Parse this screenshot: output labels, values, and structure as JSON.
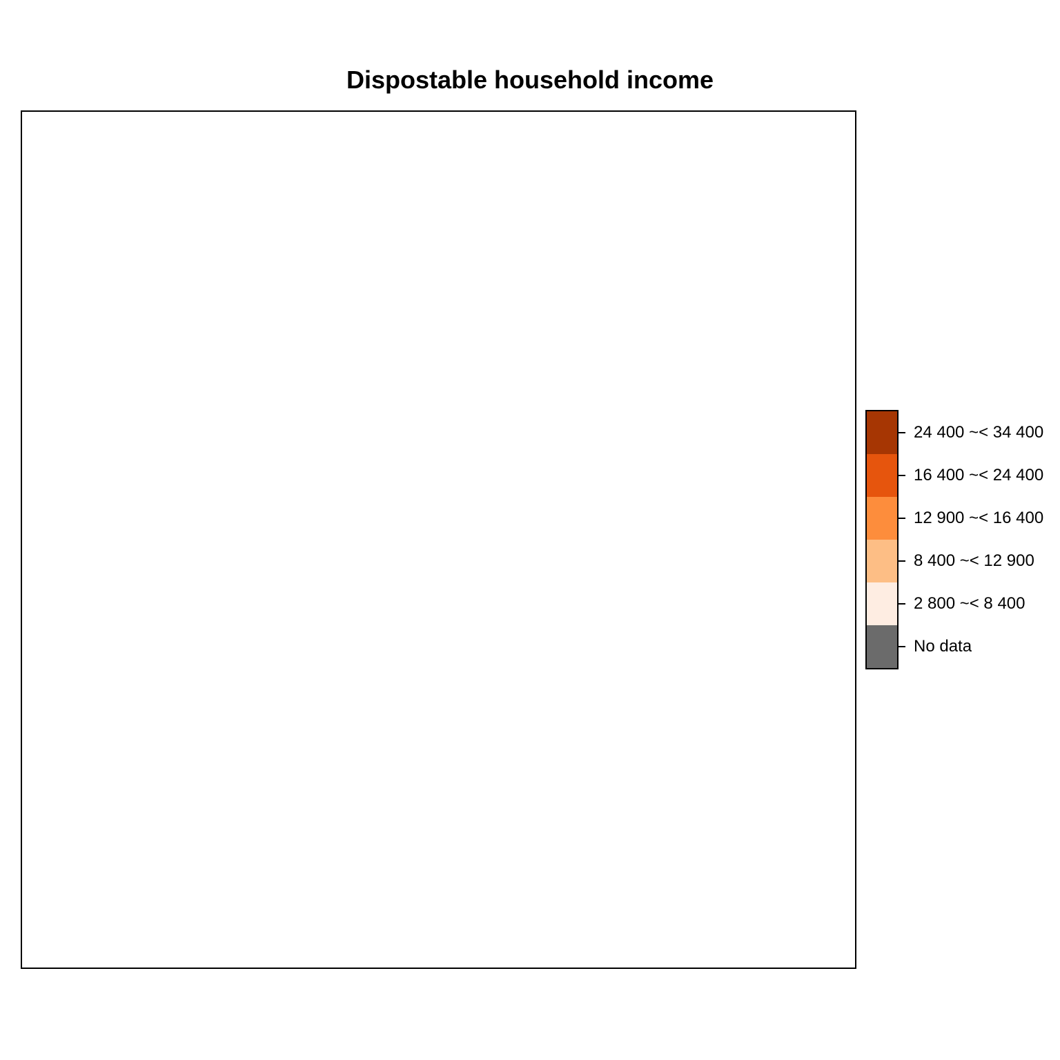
{
  "title": "Dispostable household income",
  "legend": {
    "classes": [
      {
        "label": "24 400 ~< 34 400",
        "color": "#a63603"
      },
      {
        "label": "16 400 ~< 24 400",
        "color": "#e6550d"
      },
      {
        "label": "12 900 ~< 16 400",
        "color": "#fd8d3c"
      },
      {
        "label": "8 400 ~< 12 900",
        "color": "#fdbe85"
      },
      {
        "label": "2 800 ~< 8 400",
        "color": "#feede2"
      },
      {
        "label": "No data",
        "color": "#6b6b6b"
      }
    ]
  }
}
